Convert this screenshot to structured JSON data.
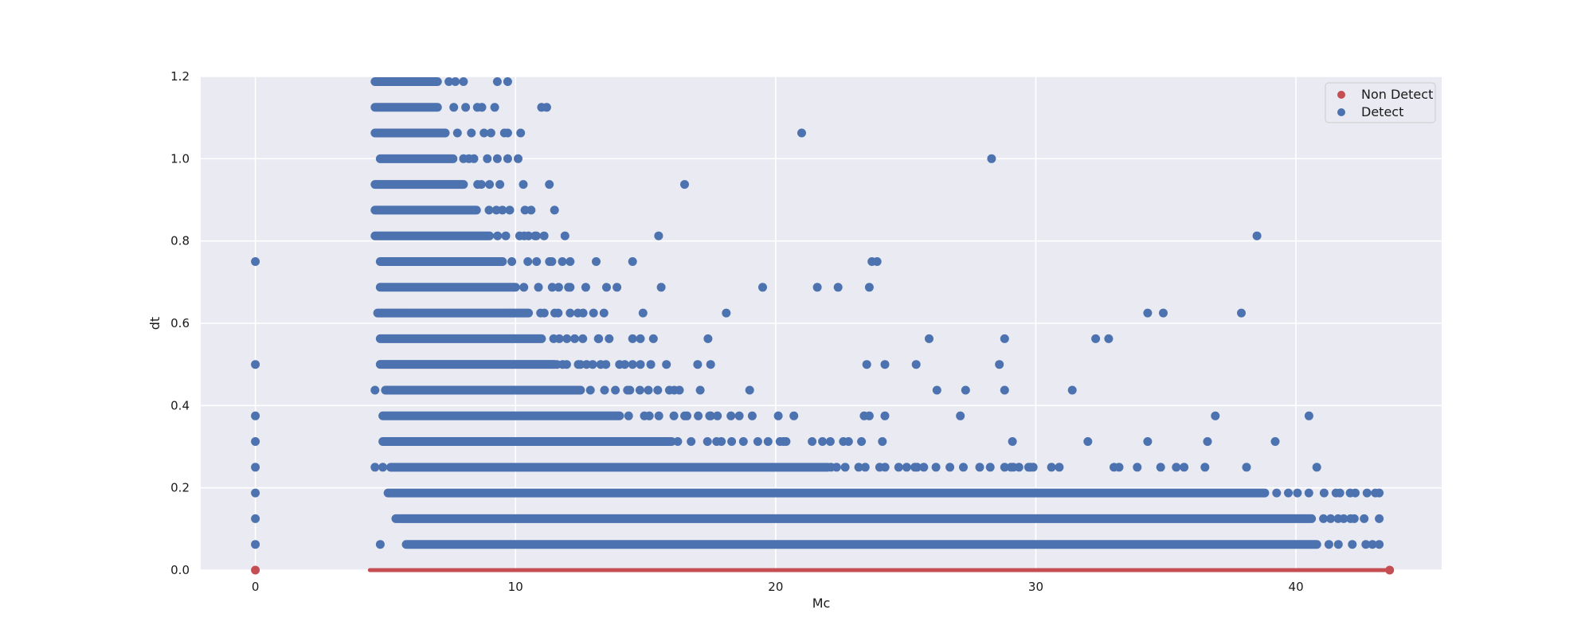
{
  "chart_data": {
    "type": "scatter",
    "xlabel": "Mc",
    "ylabel": "dt",
    "xlim": [
      -2.1,
      45.6
    ],
    "ylim": [
      0.0,
      1.2
    ],
    "x_ticks": [
      0,
      10,
      20,
      30,
      40
    ],
    "y_ticks": [
      0.0,
      0.2,
      0.4,
      0.6,
      0.8,
      1.0,
      1.2
    ],
    "x_tick_labels": [
      "0",
      "10",
      "20",
      "30",
      "40"
    ],
    "y_tick_labels": [
      "0.0",
      "0.2",
      "0.4",
      "0.6",
      "0.8",
      "1.0",
      "1.2"
    ],
    "grid": true,
    "legend_position": "top-right",
    "series": [
      {
        "name": "Non Detect",
        "color": "#c44e52",
        "points": [
          [
            0,
            0.0
          ]
        ],
        "bands": [
          {
            "y": 0.0,
            "x_start": 4.4,
            "x_end": 43.6
          }
        ]
      },
      {
        "name": "Detect",
        "color": "#4c72b0",
        "points": [
          [
            0,
            0.75
          ],
          [
            0,
            0.5
          ],
          [
            0,
            0.375
          ],
          [
            0,
            0.3125
          ],
          [
            0,
            0.25
          ],
          [
            0,
            0.1875
          ],
          [
            0,
            0.125
          ],
          [
            0,
            0.0625
          ],
          [
            4.6,
            0.4375
          ],
          [
            4.6,
            0.25
          ],
          [
            4.8,
            0.0625
          ],
          [
            4.9,
            0.25
          ],
          [
            9.3,
            1.1875
          ],
          [
            9.7,
            1.1875
          ],
          [
            11.0,
            1.125
          ],
          [
            11.2,
            1.125
          ],
          [
            10.2,
            1.0625
          ],
          [
            9.7,
            1.0
          ],
          [
            10.1,
            1.0
          ],
          [
            9.4,
            0.9375
          ],
          [
            10.3,
            0.9375
          ],
          [
            11.3,
            0.9375
          ],
          [
            16.5,
            0.9375
          ],
          [
            11.5,
            0.875
          ],
          [
            11.1,
            0.8125
          ],
          [
            11.9,
            0.8125
          ],
          [
            15.5,
            0.8125
          ],
          [
            11.8,
            0.75
          ],
          [
            12.1,
            0.75
          ],
          [
            13.1,
            0.75
          ],
          [
            14.5,
            0.75
          ],
          [
            12.7,
            0.6875
          ],
          [
            13.5,
            0.6875
          ],
          [
            13.9,
            0.6875
          ],
          [
            15.6,
            0.6875
          ],
          [
            12.6,
            0.625
          ],
          [
            13.0,
            0.625
          ],
          [
            13.4,
            0.625
          ],
          [
            14.9,
            0.625
          ],
          [
            13.6,
            0.5625
          ],
          [
            14.5,
            0.5625
          ],
          [
            14.8,
            0.5625
          ],
          [
            15.3,
            0.5625
          ],
          [
            17.4,
            0.5625
          ],
          [
            14.5,
            0.5
          ],
          [
            14.8,
            0.5
          ],
          [
            15.2,
            0.5
          ],
          [
            15.8,
            0.5
          ],
          [
            17.0,
            0.5
          ],
          [
            17.5,
            0.5
          ],
          [
            16.3,
            0.4375
          ],
          [
            17.1,
            0.4375
          ],
          [
            17.5,
            0.375
          ],
          [
            19.1,
            0.375
          ],
          [
            20.1,
            0.375
          ],
          [
            20.7,
            0.375
          ],
          [
            21.0,
            1.0625
          ],
          [
            19.5,
            0.6875
          ],
          [
            21.6,
            0.6875
          ],
          [
            22.4,
            0.6875
          ],
          [
            23.6,
            0.6875
          ],
          [
            18.1,
            0.625
          ],
          [
            23.7,
            0.75
          ],
          [
            23.9,
            0.75
          ],
          [
            23.5,
            0.5
          ],
          [
            24.2,
            0.5
          ],
          [
            25.4,
            0.5
          ],
          [
            25.9,
            0.5625
          ],
          [
            19.0,
            0.4375
          ],
          [
            26.2,
            0.4375
          ],
          [
            27.3,
            0.4375
          ],
          [
            23.4,
            0.375
          ],
          [
            23.6,
            0.375
          ],
          [
            24.2,
            0.375
          ],
          [
            27.1,
            0.375
          ],
          [
            21.4,
            0.3125
          ],
          [
            21.8,
            0.3125
          ],
          [
            22.1,
            0.3125
          ],
          [
            22.6,
            0.3125
          ],
          [
            22.8,
            0.3125
          ],
          [
            23.3,
            0.3125
          ],
          [
            24.1,
            0.3125
          ],
          [
            28.3,
            1.0
          ],
          [
            28.6,
            0.5
          ],
          [
            28.8,
            0.5625
          ],
          [
            28.8,
            0.4375
          ],
          [
            29.1,
            0.3125
          ],
          [
            29.9,
            0.25
          ],
          [
            30.6,
            0.25
          ],
          [
            30.9,
            0.25
          ],
          [
            31.4,
            0.4375
          ],
          [
            32.0,
            0.3125
          ],
          [
            32.3,
            0.5625
          ],
          [
            32.8,
            0.5625
          ],
          [
            33.0,
            0.25
          ],
          [
            33.2,
            0.25
          ],
          [
            33.9,
            0.25
          ],
          [
            34.3,
            0.625
          ],
          [
            34.9,
            0.625
          ],
          [
            34.3,
            0.3125
          ],
          [
            34.8,
            0.25
          ],
          [
            35.4,
            0.25
          ],
          [
            35.7,
            0.25
          ],
          [
            36.6,
            0.3125
          ],
          [
            36.5,
            0.25
          ],
          [
            36.9,
            0.375
          ],
          [
            37.9,
            0.625
          ],
          [
            38.1,
            0.25
          ],
          [
            38.5,
            0.8125
          ],
          [
            39.2,
            0.3125
          ],
          [
            40.5,
            0.375
          ],
          [
            40.8,
            0.25
          ]
        ],
        "bands": [
          {
            "y": 1.1875,
            "x_start": 4.6,
            "x_end": 8.0,
            "dense_to": 7.0
          },
          {
            "y": 1.125,
            "x_start": 4.6,
            "x_end": 9.2,
            "dense_to": 7.0
          },
          {
            "y": 1.0625,
            "x_start": 4.6,
            "x_end": 9.7,
            "dense_to": 7.3
          },
          {
            "y": 1.0,
            "x_start": 4.8,
            "x_end": 9.3,
            "dense_to": 7.6
          },
          {
            "y": 0.9375,
            "x_start": 4.6,
            "x_end": 9.0,
            "dense_to": 8.0
          },
          {
            "y": 0.875,
            "x_start": 4.6,
            "x_end": 10.6,
            "dense_to": 8.5
          },
          {
            "y": 0.8125,
            "x_start": 4.6,
            "x_end": 10.8,
            "dense_to": 9.0
          },
          {
            "y": 0.75,
            "x_start": 4.8,
            "x_end": 11.4,
            "dense_to": 9.5
          },
          {
            "y": 0.6875,
            "x_start": 4.8,
            "x_end": 12.1,
            "dense_to": 10.0
          },
          {
            "y": 0.625,
            "x_start": 4.7,
            "x_end": 12.4,
            "dense_to": 10.5
          },
          {
            "y": 0.5625,
            "x_start": 4.8,
            "x_end": 13.2,
            "dense_to": 11.0
          },
          {
            "y": 0.5,
            "x_start": 4.8,
            "x_end": 14.2,
            "dense_to": 11.5
          },
          {
            "y": 0.4375,
            "x_start": 5.0,
            "x_end": 16.1,
            "dense_to": 12.5
          },
          {
            "y": 0.375,
            "x_start": 4.9,
            "x_end": 18.6,
            "dense_to": 14.0
          },
          {
            "y": 0.3125,
            "x_start": 4.9,
            "x_end": 20.4,
            "dense_to": 16.0
          },
          {
            "y": 0.25,
            "x_start": 5.2,
            "x_end": 29.8,
            "dense_to": 22.0
          },
          {
            "y": 0.1875,
            "x_start": 5.1,
            "x_end": 43.2,
            "dense_to": 38.8
          },
          {
            "y": 0.125,
            "x_start": 5.4,
            "x_end": 43.2,
            "dense_to": 40.6
          },
          {
            "y": 0.0625,
            "x_start": 5.8,
            "x_end": 43.2,
            "dense_to": 40.8
          }
        ]
      }
    ]
  }
}
